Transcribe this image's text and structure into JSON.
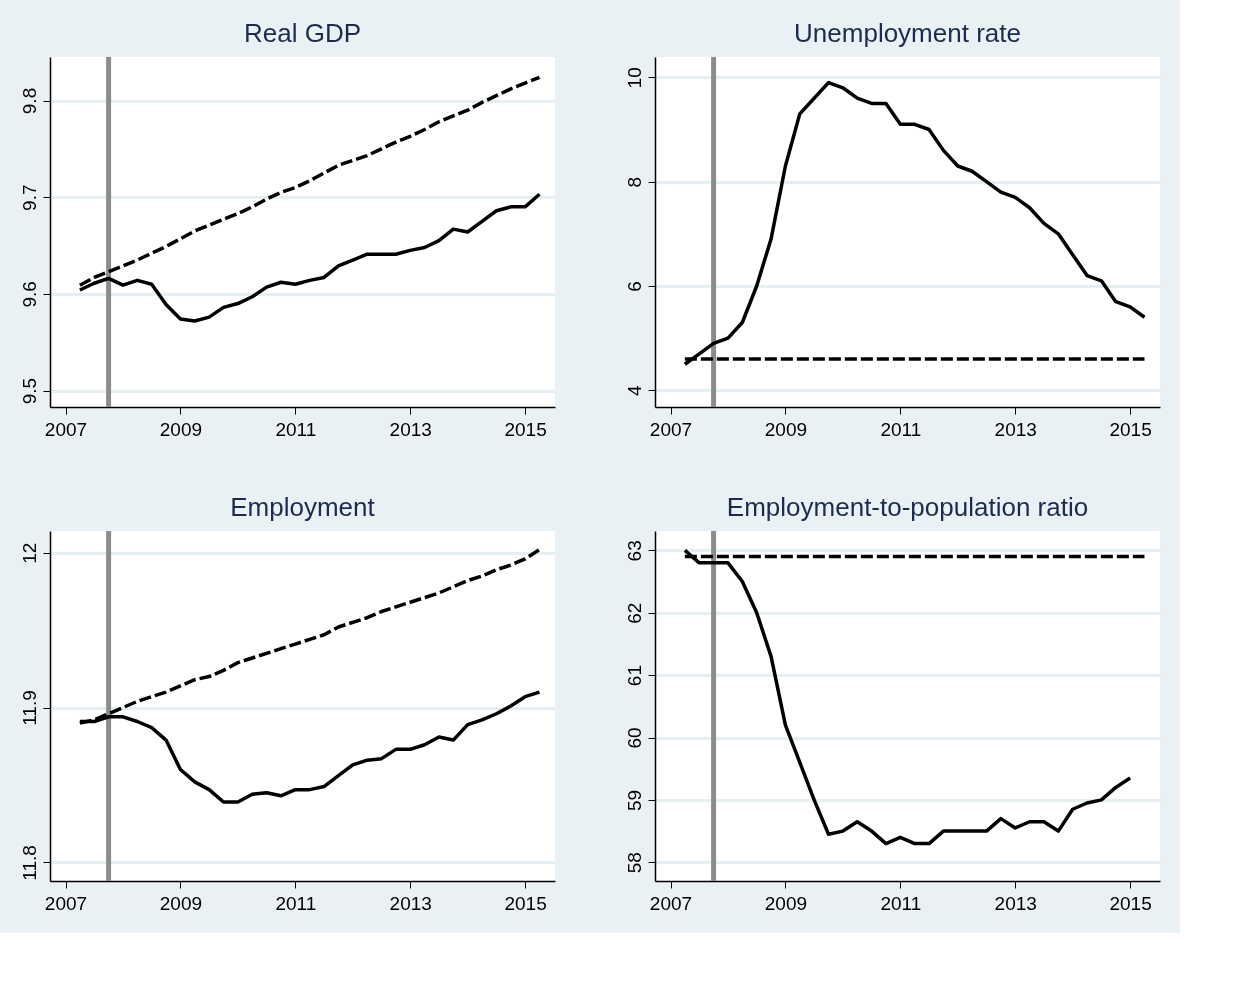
{
  "chart_data": [
    {
      "type": "line",
      "title": "Real GDP",
      "grid": "y",
      "xlim": [
        2006.73,
        2015.52
      ],
      "xticks": [
        2007,
        2009,
        2011,
        2013,
        2015
      ],
      "ylim": [
        9.483,
        9.845
      ],
      "yticks": [
        9.5,
        9.6,
        9.7,
        9.8
      ],
      "x": [
        2007.25,
        2007.5,
        2007.75,
        2008,
        2008.25,
        2008.5,
        2008.75,
        2009,
        2009.25,
        2009.5,
        2009.75,
        2010,
        2010.25,
        2010.5,
        2010.75,
        2011,
        2011.25,
        2011.5,
        2011.75,
        2012,
        2012.25,
        2012.5,
        2012.75,
        2013,
        2013.25,
        2013.5,
        2013.75,
        2014,
        2014.25,
        2014.5,
        2014.75,
        2015,
        2015.25
      ],
      "ref_lines": [
        {
          "axis": "x",
          "value": 2007.75,
          "color": "#8c8c8c"
        }
      ],
      "series": [
        {
          "color": "#000000",
          "line_style": "solid",
          "values": [
            9.604,
            9.611,
            9.616,
            9.609,
            9.614,
            9.61,
            9.589,
            9.574,
            9.572,
            9.576,
            9.586,
            9.59,
            9.597,
            9.607,
            9.612,
            9.61,
            9.614,
            9.617,
            9.629,
            9.635,
            9.641,
            9.641,
            9.641,
            9.645,
            9.648,
            9.655,
            9.667,
            9.664,
            9.675,
            9.686,
            9.69,
            9.69,
            9.703
          ]
        },
        {
          "color": "#000000",
          "line_style": "dashed",
          "values": [
            9.609,
            9.617,
            9.623,
            9.629,
            9.635,
            9.642,
            9.649,
            9.657,
            9.665,
            9.671,
            9.677,
            9.683,
            9.69,
            9.698,
            9.705,
            9.71,
            9.717,
            9.725,
            9.733,
            9.738,
            9.743,
            9.75,
            9.757,
            9.763,
            9.77,
            9.778,
            9.784,
            9.79,
            9.798,
            9.805,
            9.812,
            9.818,
            9.824
          ]
        }
      ]
    },
    {
      "type": "line",
      "title": "Unemployment rate",
      "grid": "y",
      "xlim": [
        2006.73,
        2015.52
      ],
      "xticks": [
        2007,
        2009,
        2011,
        2013,
        2015
      ],
      "ylim": [
        3.68,
        10.39
      ],
      "yticks": [
        4,
        6,
        8,
        10
      ],
      "x": [
        2007.25,
        2007.5,
        2007.75,
        2008,
        2008.25,
        2008.5,
        2008.75,
        2009,
        2009.25,
        2009.5,
        2009.75,
        2010,
        2010.25,
        2010.5,
        2010.75,
        2011,
        2011.25,
        2011.5,
        2011.75,
        2012,
        2012.25,
        2012.5,
        2012.75,
        2013,
        2013.25,
        2013.5,
        2013.75,
        2014,
        2014.25,
        2014.5,
        2014.75,
        2015,
        2015.25
      ],
      "ref_lines": [
        {
          "axis": "x",
          "value": 2007.75,
          "color": "#8c8c8c"
        }
      ],
      "series": [
        {
          "color": "#000000",
          "line_style": "solid",
          "values": [
            4.5,
            4.7,
            4.9,
            5.0,
            5.3,
            6.0,
            6.9,
            8.3,
            9.3,
            9.6,
            9.9,
            9.8,
            9.6,
            9.5,
            9.5,
            9.1,
            9.1,
            9.0,
            8.6,
            8.3,
            8.2,
            8.0,
            7.8,
            7.7,
            7.5,
            7.2,
            7.0,
            6.6,
            6.2,
            6.1,
            5.7,
            5.6,
            5.4
          ]
        },
        {
          "color": "#000000",
          "line_style": "dashed",
          "values": [
            4.6,
            4.6,
            4.6,
            4.6,
            4.6,
            4.6,
            4.6,
            4.6,
            4.6,
            4.6,
            4.6,
            4.6,
            4.6,
            4.6,
            4.6,
            4.6,
            4.6,
            4.6,
            4.6,
            4.6,
            4.6,
            4.6,
            4.6,
            4.6,
            4.6,
            4.6,
            4.6,
            4.6,
            4.6,
            4.6,
            4.6,
            4.6,
            4.6
          ]
        }
      ]
    },
    {
      "type": "line",
      "title": "Employment",
      "grid": "y",
      "xlim": [
        2006.73,
        2015.52
      ],
      "xticks": [
        2007,
        2009,
        2011,
        2013,
        2015
      ],
      "ylim": [
        11.788,
        12.014
      ],
      "yticks": [
        11.8,
        11.9,
        12
      ],
      "x": [
        2007.25,
        2007.5,
        2007.75,
        2008,
        2008.25,
        2008.5,
        2008.75,
        2009,
        2009.25,
        2009.5,
        2009.75,
        2010,
        2010.25,
        2010.5,
        2010.75,
        2011,
        2011.25,
        2011.5,
        2011.75,
        2012,
        2012.25,
        2012.5,
        2012.75,
        2013,
        2013.25,
        2013.5,
        2013.75,
        2014,
        2014.25,
        2014.5,
        2014.75,
        2015,
        2015.25
      ],
      "ref_lines": [
        {
          "axis": "x",
          "value": 2007.75,
          "color": "#8c8c8c"
        }
      ],
      "series": [
        {
          "color": "#000000",
          "line_style": "solid",
          "values": [
            11.891,
            11.891,
            11.894,
            11.894,
            11.891,
            11.887,
            11.879,
            11.86,
            11.852,
            11.847,
            11.839,
            11.839,
            11.844,
            11.845,
            11.843,
            11.847,
            11.847,
            11.849,
            11.856,
            11.863,
            11.866,
            11.867,
            11.873,
            11.873,
            11.876,
            11.881,
            11.879,
            11.889,
            11.892,
            11.896,
            11.901,
            11.907,
            11.91
          ]
        },
        {
          "color": "#000000",
          "line_style": "dashed",
          "values": [
            11.89,
            11.892,
            11.896,
            11.9,
            11.904,
            11.907,
            11.91,
            11.914,
            11.918,
            11.92,
            11.924,
            11.929,
            11.932,
            11.935,
            11.938,
            11.941,
            11.944,
            11.947,
            11.952,
            11.955,
            11.958,
            11.962,
            11.965,
            11.968,
            11.971,
            11.974,
            11.978,
            11.982,
            11.985,
            11.989,
            11.992,
            11.996,
            12.002
          ]
        }
      ]
    },
    {
      "type": "line",
      "title": "Employment-to-population ratio",
      "grid": "y",
      "xlim": [
        2006.73,
        2015.52
      ],
      "xticks": [
        2007,
        2009,
        2011,
        2013,
        2015
      ],
      "ylim": [
        57.7,
        63.31
      ],
      "yticks": [
        58,
        59,
        60,
        61,
        62,
        63
      ],
      "x": [
        2007.25,
        2007.5,
        2007.75,
        2008,
        2008.25,
        2008.5,
        2008.75,
        2009,
        2009.25,
        2009.5,
        2009.75,
        2010,
        2010.25,
        2010.5,
        2010.75,
        2011,
        2011.25,
        2011.5,
        2011.75,
        2012,
        2012.25,
        2012.5,
        2012.75,
        2013,
        2013.25,
        2013.5,
        2013.75,
        2014,
        2014.25,
        2014.5,
        2014.75,
        2015,
        2015.25
      ],
      "ref_lines": [
        {
          "axis": "x",
          "value": 2007.75,
          "color": "#8c8c8c"
        }
      ],
      "series": [
        {
          "color": "#000000",
          "line_style": "solid",
          "values": [
            63.0,
            62.8,
            62.8,
            62.8,
            62.5,
            62.0,
            61.3,
            60.2,
            59.6,
            59.0,
            58.45,
            58.5,
            58.65,
            58.5,
            58.3,
            58.4,
            58.3,
            58.3,
            58.5,
            58.5,
            58.5,
            58.5,
            58.7,
            58.55,
            58.65,
            58.65,
            58.5,
            58.85,
            58.95,
            59.0,
            59.2,
            59.35,
            null
          ]
        },
        {
          "color": "#000000",
          "line_style": "dashed",
          "values": [
            62.9,
            62.9,
            62.9,
            62.9,
            62.9,
            62.9,
            62.9,
            62.9,
            62.9,
            62.9,
            62.9,
            62.9,
            62.9,
            62.9,
            62.9,
            62.9,
            62.9,
            62.9,
            62.9,
            62.9,
            62.9,
            62.9,
            62.9,
            62.9,
            62.9,
            62.9,
            62.9,
            62.9,
            62.9,
            62.9,
            62.9,
            62.9,
            62.9
          ]
        }
      ]
    }
  ]
}
